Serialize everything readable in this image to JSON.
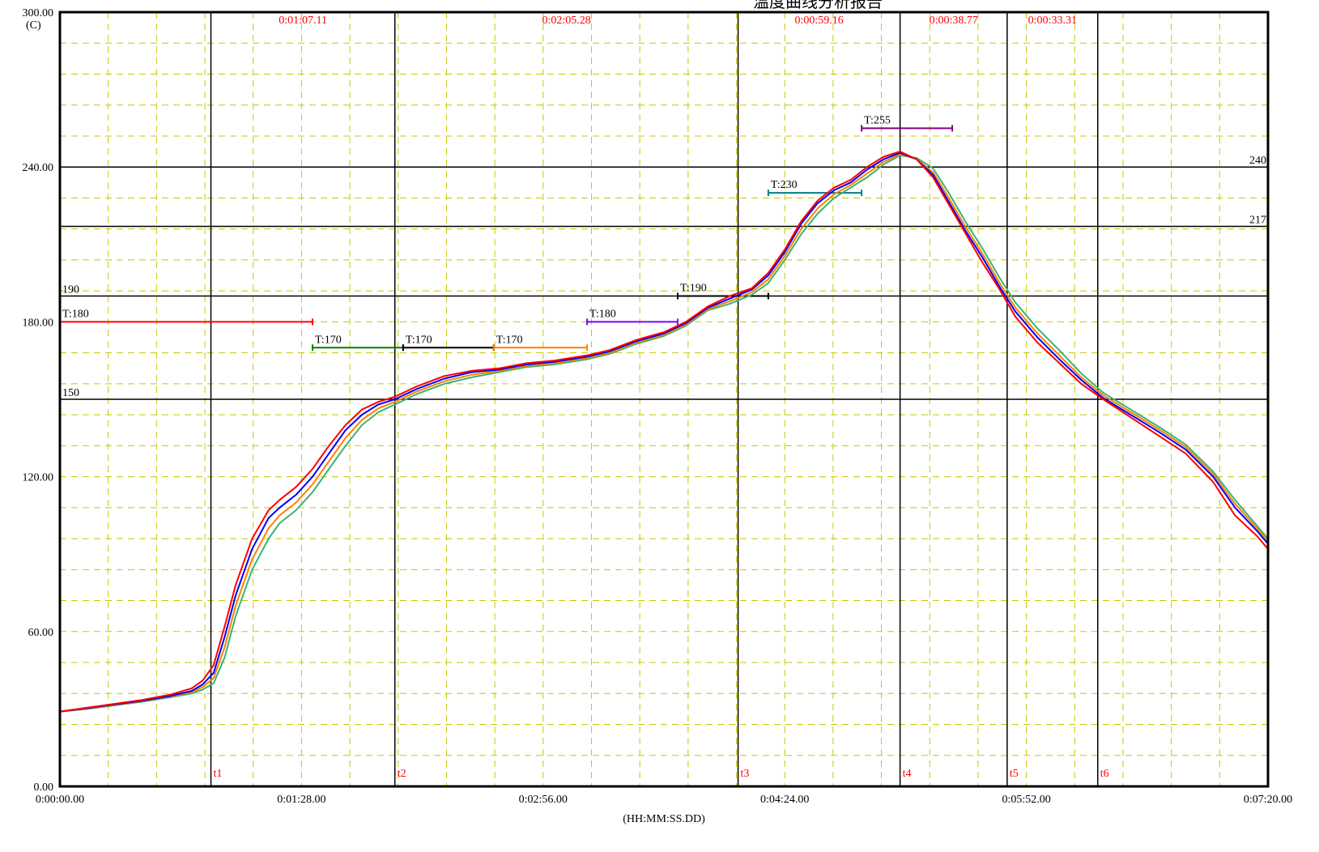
{
  "chart_data": {
    "type": "line",
    "title": "温度曲线分析报告",
    "xlabel": "(HH:MM:SS.DD)",
    "ylabel": "(C)",
    "xlim_seconds": [
      0,
      440
    ],
    "ylim": [
      0,
      300
    ],
    "grid": true,
    "y_ticks": [
      {
        "value": 0,
        "label": "0.00"
      },
      {
        "value": 60,
        "label": "60.00"
      },
      {
        "value": 120,
        "label": "120.00"
      },
      {
        "value": 180,
        "label": "180.00"
      },
      {
        "value": 240,
        "label": "240.00"
      },
      {
        "value": 300,
        "label": "300.00"
      }
    ],
    "x_ticks": [
      {
        "value": 0,
        "label": "0:00:00.00"
      },
      {
        "value": 88,
        "label": "0:01:28.00"
      },
      {
        "value": 176,
        "label": "0:02:56.00"
      },
      {
        "value": 264,
        "label": "0:04:24.00"
      },
      {
        "value": 352,
        "label": "0:05:52.00"
      },
      {
        "value": 440,
        "label": "0:07:20.00"
      }
    ],
    "reference_lines": [
      {
        "value": 240,
        "label": "240"
      },
      {
        "value": 217,
        "label": "217"
      },
      {
        "value": 190,
        "label": "190"
      },
      {
        "value": 150,
        "label": "150"
      }
    ],
    "time_markers": [
      {
        "label": "t1",
        "value": 55
      },
      {
        "label": "t2",
        "value": 122
      },
      {
        "label": "t3",
        "value": 247
      },
      {
        "label": "t4",
        "value": 306
      },
      {
        "label": "t5",
        "value": 345
      },
      {
        "label": "t6",
        "value": 378
      }
    ],
    "durations": [
      {
        "label": "0:01:07.11",
        "from": 55,
        "to": 122
      },
      {
        "label": "0:02:05.28",
        "from": 122,
        "to": 247
      },
      {
        "label": "0:00:59.16",
        "from": 247,
        "to": 306
      },
      {
        "label": "0:00:38.77",
        "from": 306,
        "to": 345
      },
      {
        "label": "0:00:33.31",
        "from": 345,
        "to": 378
      }
    ],
    "setpoints": [
      {
        "label": "T:180",
        "value": 180,
        "x_start": 0,
        "x_end": 92,
        "color": "#ff0000"
      },
      {
        "label": "T:170",
        "value": 170,
        "x_start": 92,
        "x_end": 125,
        "color": "#008000"
      },
      {
        "label": "T:170",
        "value": 170,
        "x_start": 125,
        "x_end": 158,
        "color": "#000000"
      },
      {
        "label": "T:170",
        "value": 170,
        "x_start": 158,
        "x_end": 192,
        "color": "#ff8000"
      },
      {
        "label": "T:180",
        "value": 180,
        "x_start": 192,
        "x_end": 225,
        "color": "#8000ff"
      },
      {
        "label": "T:190",
        "value": 190,
        "x_start": 225,
        "x_end": 258,
        "color": "#000000"
      },
      {
        "label": "T:230",
        "value": 230,
        "x_start": 258,
        "x_end": 292,
        "color": "#008080"
      },
      {
        "label": "T:255",
        "value": 255,
        "x_start": 292,
        "x_end": 325,
        "color": "#800080"
      }
    ],
    "series": [
      {
        "color": "#ff0000",
        "x": [
          0,
          10,
          20,
          30,
          40,
          48,
          52,
          56,
          60,
          64,
          70,
          76,
          80,
          86,
          92,
          98,
          104,
          110,
          116,
          122,
          130,
          140,
          150,
          160,
          170,
          180,
          192,
          200,
          210,
          220,
          228,
          236,
          244,
          252,
          258,
          264,
          270,
          276,
          282,
          288,
          294,
          300,
          306,
          312,
          318,
          324,
          330,
          336,
          342,
          348,
          356,
          364,
          372,
          380,
          390,
          400,
          410,
          420,
          428,
          436,
          440
        ],
        "values": [
          29,
          30.5,
          32,
          33.5,
          35.5,
          38,
          41,
          47,
          62,
          78,
          96,
          107,
          111,
          116,
          123,
          132,
          140,
          146,
          149,
          151,
          155,
          159,
          161,
          162,
          164,
          165,
          167,
          169,
          173,
          176,
          180,
          186,
          190,
          193,
          199,
          208,
          219,
          227,
          232,
          235,
          240,
          244,
          246,
          243,
          236,
          225,
          214,
          203,
          193,
          182,
          172,
          164,
          156,
          150,
          143,
          136,
          129,
          118,
          105,
          97,
          92
        ]
      },
      {
        "color": "#0000ff",
        "x": [
          0,
          10,
          20,
          30,
          40,
          48,
          52,
          56,
          60,
          64,
          70,
          76,
          80,
          86,
          92,
          98,
          104,
          110,
          116,
          122,
          130,
          140,
          150,
          160,
          170,
          180,
          192,
          200,
          210,
          220,
          228,
          236,
          244,
          252,
          258,
          264,
          270,
          276,
          282,
          288,
          294,
          300,
          306,
          312,
          318,
          324,
          330,
          336,
          342,
          348,
          356,
          364,
          372,
          380,
          390,
          400,
          410,
          420,
          428,
          436,
          440
        ],
        "values": [
          29,
          30.3,
          31.8,
          33.2,
          35,
          37,
          39.5,
          44,
          58,
          74,
          92,
          104,
          108,
          113,
          120,
          129,
          138,
          144,
          148,
          150,
          154,
          158,
          160.5,
          161.5,
          163.5,
          164.5,
          166.5,
          168.5,
          172.5,
          175.5,
          179.5,
          185.5,
          189,
          192.5,
          198,
          207,
          218,
          226,
          231,
          234,
          239,
          243,
          245.5,
          243,
          237,
          226,
          215,
          205,
          194,
          184,
          174,
          165.5,
          157.5,
          150.5,
          144,
          137.5,
          130.5,
          120,
          108,
          99,
          94
        ]
      },
      {
        "color": "#ff8000",
        "x": [
          0,
          10,
          20,
          30,
          40,
          48,
          52,
          56,
          60,
          64,
          70,
          76,
          80,
          86,
          92,
          98,
          104,
          110,
          116,
          122,
          130,
          140,
          150,
          160,
          170,
          180,
          192,
          200,
          210,
          220,
          228,
          236,
          244,
          252,
          258,
          264,
          270,
          276,
          282,
          288,
          294,
          300,
          306,
          312,
          318,
          324,
          330,
          336,
          342,
          348,
          356,
          364,
          372,
          380,
          390,
          400,
          410,
          420,
          428,
          436,
          440
        ],
        "values": [
          29,
          30.2,
          31.6,
          33,
          34.8,
          36.5,
          38.5,
          42,
          54,
          70,
          88,
          100,
          105,
          110,
          117,
          126,
          135,
          142,
          146.5,
          149,
          153,
          157,
          159.5,
          161,
          163,
          164,
          166,
          168,
          172,
          175,
          179,
          185,
          188,
          191.5,
          196.5,
          205.5,
          216,
          224,
          229.5,
          233,
          237.5,
          242,
          245,
          243,
          238,
          227.5,
          216.5,
          206.5,
          195.5,
          185.5,
          175.5,
          167,
          158.5,
          151.5,
          145,
          138.5,
          131.5,
          121,
          109.5,
          100,
          95
        ]
      },
      {
        "color": "#3cb371",
        "x": [
          0,
          10,
          20,
          30,
          40,
          48,
          52,
          56,
          60,
          64,
          70,
          76,
          80,
          86,
          92,
          98,
          104,
          110,
          116,
          122,
          130,
          140,
          150,
          160,
          170,
          180,
          192,
          200,
          210,
          220,
          228,
          236,
          244,
          252,
          258,
          264,
          270,
          276,
          282,
          288,
          294,
          300,
          306,
          312,
          318,
          324,
          330,
          336,
          342,
          348,
          356,
          364,
          372,
          380,
          390,
          400,
          410,
          420,
          428,
          436,
          440
        ],
        "values": [
          29,
          30,
          31.4,
          32.8,
          34.5,
          36,
          37.5,
          40,
          50,
          66,
          84,
          96,
          102,
          107,
          114,
          123,
          132,
          140,
          145,
          148,
          152,
          156,
          158.5,
          160.5,
          162.5,
          163.5,
          165.5,
          167.5,
          171.5,
          174.5,
          178.5,
          184.5,
          187,
          190.5,
          195,
          204,
          214,
          222,
          228,
          232,
          236,
          241,
          244.5,
          243.5,
          239.5,
          229.5,
          218.5,
          208.5,
          197.5,
          187.5,
          177.5,
          169,
          160,
          152.5,
          146,
          139.5,
          132.5,
          122,
          111,
          101,
          96
        ]
      }
    ]
  },
  "colors": {
    "grid_dash": "#c8c800",
    "axis": "#000000",
    "marker_label": "#ff0000"
  }
}
